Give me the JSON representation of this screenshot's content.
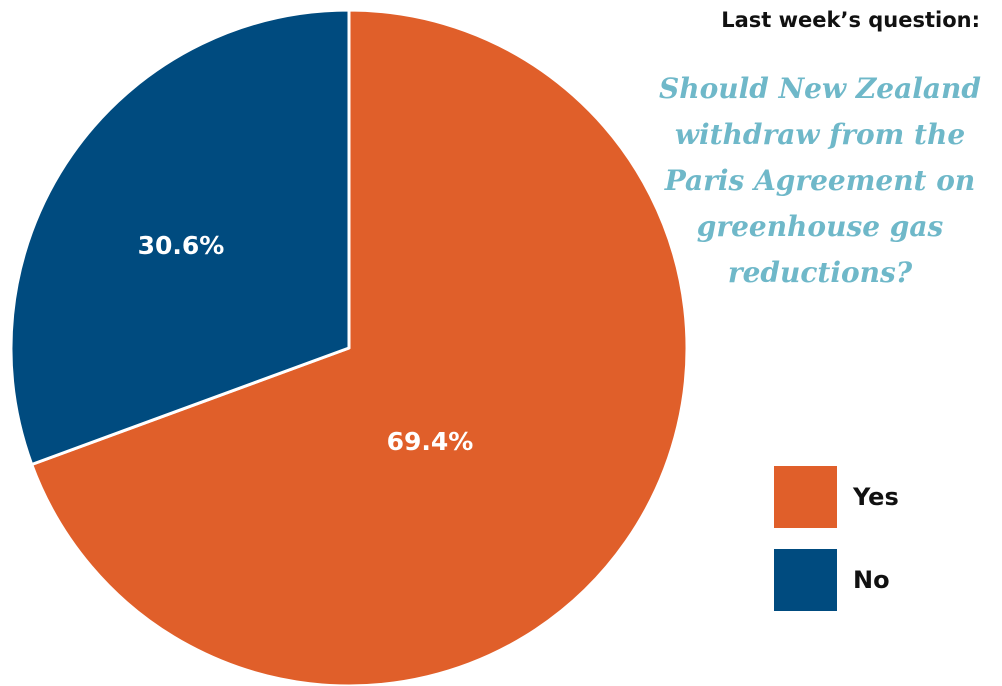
{
  "header": {
    "label": "Last week’s question:",
    "question": "Should New Zealand withdraw from the Paris Agreement on greenhouse gas reductions?"
  },
  "colors": {
    "yes": "#e05f2a",
    "no": "#004b7f",
    "question_text": "#6fb8c9"
  },
  "chart_data": {
    "type": "pie",
    "categories": [
      "Yes",
      "No"
    ],
    "values": [
      69.4,
      30.6
    ],
    "value_labels": [
      "69.4%",
      "30.6%"
    ],
    "colors": [
      "#e05f2a",
      "#004b7f"
    ],
    "legend_placement": "bottom-right",
    "title": "",
    "start_angle": "12 o'clock",
    "direction": "clockwise"
  },
  "legend": {
    "items": [
      {
        "label": "Yes",
        "color": "#e05f2a"
      },
      {
        "label": "No",
        "color": "#004b7f"
      }
    ]
  }
}
